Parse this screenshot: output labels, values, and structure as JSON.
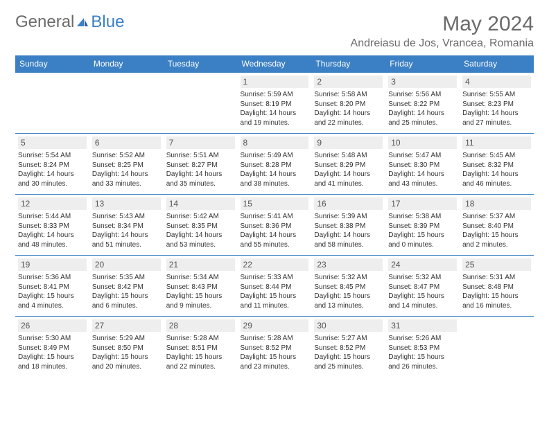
{
  "logo": {
    "text1": "General",
    "text2": "Blue"
  },
  "title": "May 2024",
  "location": "Andreiasu de Jos, Vrancea, Romania",
  "colors": {
    "header_bg": "#3b7fc4",
    "header_text": "#ffffff",
    "daynum_bg": "#eeeeee",
    "border": "#3b7fc4",
    "title_color": "#6b6b6b"
  },
  "typography": {
    "month_title_size": 30,
    "location_size": 16,
    "weekday_header_size": 12,
    "daynum_size": 12,
    "dayinfo_size": 10
  },
  "weekdays": [
    "Sunday",
    "Monday",
    "Tuesday",
    "Wednesday",
    "Thursday",
    "Friday",
    "Saturday"
  ],
  "weeks": [
    [
      null,
      null,
      null,
      {
        "n": "1",
        "sr": "Sunrise: 5:59 AM",
        "ss": "Sunset: 8:19 PM",
        "dl1": "Daylight: 14 hours",
        "dl2": "and 19 minutes."
      },
      {
        "n": "2",
        "sr": "Sunrise: 5:58 AM",
        "ss": "Sunset: 8:20 PM",
        "dl1": "Daylight: 14 hours",
        "dl2": "and 22 minutes."
      },
      {
        "n": "3",
        "sr": "Sunrise: 5:56 AM",
        "ss": "Sunset: 8:22 PM",
        "dl1": "Daylight: 14 hours",
        "dl2": "and 25 minutes."
      },
      {
        "n": "4",
        "sr": "Sunrise: 5:55 AM",
        "ss": "Sunset: 8:23 PM",
        "dl1": "Daylight: 14 hours",
        "dl2": "and 27 minutes."
      }
    ],
    [
      {
        "n": "5",
        "sr": "Sunrise: 5:54 AM",
        "ss": "Sunset: 8:24 PM",
        "dl1": "Daylight: 14 hours",
        "dl2": "and 30 minutes."
      },
      {
        "n": "6",
        "sr": "Sunrise: 5:52 AM",
        "ss": "Sunset: 8:25 PM",
        "dl1": "Daylight: 14 hours",
        "dl2": "and 33 minutes."
      },
      {
        "n": "7",
        "sr": "Sunrise: 5:51 AM",
        "ss": "Sunset: 8:27 PM",
        "dl1": "Daylight: 14 hours",
        "dl2": "and 35 minutes."
      },
      {
        "n": "8",
        "sr": "Sunrise: 5:49 AM",
        "ss": "Sunset: 8:28 PM",
        "dl1": "Daylight: 14 hours",
        "dl2": "and 38 minutes."
      },
      {
        "n": "9",
        "sr": "Sunrise: 5:48 AM",
        "ss": "Sunset: 8:29 PM",
        "dl1": "Daylight: 14 hours",
        "dl2": "and 41 minutes."
      },
      {
        "n": "10",
        "sr": "Sunrise: 5:47 AM",
        "ss": "Sunset: 8:30 PM",
        "dl1": "Daylight: 14 hours",
        "dl2": "and 43 minutes."
      },
      {
        "n": "11",
        "sr": "Sunrise: 5:45 AM",
        "ss": "Sunset: 8:32 PM",
        "dl1": "Daylight: 14 hours",
        "dl2": "and 46 minutes."
      }
    ],
    [
      {
        "n": "12",
        "sr": "Sunrise: 5:44 AM",
        "ss": "Sunset: 8:33 PM",
        "dl1": "Daylight: 14 hours",
        "dl2": "and 48 minutes."
      },
      {
        "n": "13",
        "sr": "Sunrise: 5:43 AM",
        "ss": "Sunset: 8:34 PM",
        "dl1": "Daylight: 14 hours",
        "dl2": "and 51 minutes."
      },
      {
        "n": "14",
        "sr": "Sunrise: 5:42 AM",
        "ss": "Sunset: 8:35 PM",
        "dl1": "Daylight: 14 hours",
        "dl2": "and 53 minutes."
      },
      {
        "n": "15",
        "sr": "Sunrise: 5:41 AM",
        "ss": "Sunset: 8:36 PM",
        "dl1": "Daylight: 14 hours",
        "dl2": "and 55 minutes."
      },
      {
        "n": "16",
        "sr": "Sunrise: 5:39 AM",
        "ss": "Sunset: 8:38 PM",
        "dl1": "Daylight: 14 hours",
        "dl2": "and 58 minutes."
      },
      {
        "n": "17",
        "sr": "Sunrise: 5:38 AM",
        "ss": "Sunset: 8:39 PM",
        "dl1": "Daylight: 15 hours",
        "dl2": "and 0 minutes."
      },
      {
        "n": "18",
        "sr": "Sunrise: 5:37 AM",
        "ss": "Sunset: 8:40 PM",
        "dl1": "Daylight: 15 hours",
        "dl2": "and 2 minutes."
      }
    ],
    [
      {
        "n": "19",
        "sr": "Sunrise: 5:36 AM",
        "ss": "Sunset: 8:41 PM",
        "dl1": "Daylight: 15 hours",
        "dl2": "and 4 minutes."
      },
      {
        "n": "20",
        "sr": "Sunrise: 5:35 AM",
        "ss": "Sunset: 8:42 PM",
        "dl1": "Daylight: 15 hours",
        "dl2": "and 6 minutes."
      },
      {
        "n": "21",
        "sr": "Sunrise: 5:34 AM",
        "ss": "Sunset: 8:43 PM",
        "dl1": "Daylight: 15 hours",
        "dl2": "and 9 minutes."
      },
      {
        "n": "22",
        "sr": "Sunrise: 5:33 AM",
        "ss": "Sunset: 8:44 PM",
        "dl1": "Daylight: 15 hours",
        "dl2": "and 11 minutes."
      },
      {
        "n": "23",
        "sr": "Sunrise: 5:32 AM",
        "ss": "Sunset: 8:45 PM",
        "dl1": "Daylight: 15 hours",
        "dl2": "and 13 minutes."
      },
      {
        "n": "24",
        "sr": "Sunrise: 5:32 AM",
        "ss": "Sunset: 8:47 PM",
        "dl1": "Daylight: 15 hours",
        "dl2": "and 14 minutes."
      },
      {
        "n": "25",
        "sr": "Sunrise: 5:31 AM",
        "ss": "Sunset: 8:48 PM",
        "dl1": "Daylight: 15 hours",
        "dl2": "and 16 minutes."
      }
    ],
    [
      {
        "n": "26",
        "sr": "Sunrise: 5:30 AM",
        "ss": "Sunset: 8:49 PM",
        "dl1": "Daylight: 15 hours",
        "dl2": "and 18 minutes."
      },
      {
        "n": "27",
        "sr": "Sunrise: 5:29 AM",
        "ss": "Sunset: 8:50 PM",
        "dl1": "Daylight: 15 hours",
        "dl2": "and 20 minutes."
      },
      {
        "n": "28",
        "sr": "Sunrise: 5:28 AM",
        "ss": "Sunset: 8:51 PM",
        "dl1": "Daylight: 15 hours",
        "dl2": "and 22 minutes."
      },
      {
        "n": "29",
        "sr": "Sunrise: 5:28 AM",
        "ss": "Sunset: 8:52 PM",
        "dl1": "Daylight: 15 hours",
        "dl2": "and 23 minutes."
      },
      {
        "n": "30",
        "sr": "Sunrise: 5:27 AM",
        "ss": "Sunset: 8:52 PM",
        "dl1": "Daylight: 15 hours",
        "dl2": "and 25 minutes."
      },
      {
        "n": "31",
        "sr": "Sunrise: 5:26 AM",
        "ss": "Sunset: 8:53 PM",
        "dl1": "Daylight: 15 hours",
        "dl2": "and 26 minutes."
      },
      null
    ]
  ]
}
